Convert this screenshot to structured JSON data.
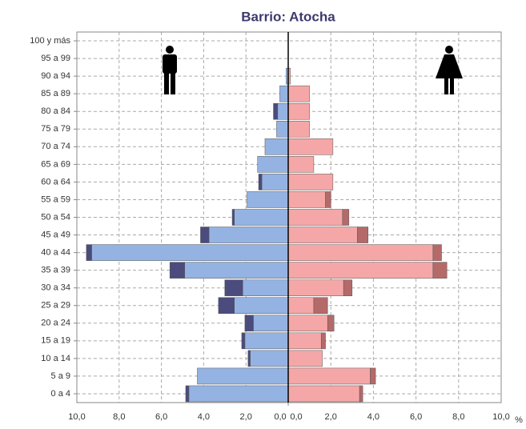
{
  "chart_data": {
    "type": "pyramid",
    "title": "Barrio: Atocha",
    "categories": [
      "100 y más",
      "95 a 99",
      "90 a 94",
      "85 a 89",
      "80 a 84",
      "75 a 79",
      "70 a 74",
      "65 a 69",
      "60 a 64",
      "55 a 59",
      "50 a 54",
      "45 a 49",
      "40 a 44",
      "35 a 39",
      "30 a 34",
      "25 a 29",
      "20 a 24",
      "15 a 19",
      "10 a 14",
      "5 a 9",
      "0 a 4"
    ],
    "series": [
      {
        "side": "left",
        "color": "#94b3e2",
        "values": [
          0,
          0,
          0.1,
          0.4,
          0.5,
          0.55,
          1.1,
          1.45,
          1.25,
          1.95,
          2.55,
          3.75,
          9.3,
          4.9,
          2.15,
          2.55,
          1.65,
          2.05,
          1.8,
          4.3,
          4.7
        ]
      },
      {
        "side": "left",
        "color": "#4b4b7d",
        "values": [
          0,
          0,
          0,
          0,
          0.2,
          0,
          0,
          0,
          0.15,
          0,
          0.1,
          0.4,
          0.25,
          0.7,
          0.85,
          0.75,
          0.4,
          0.15,
          0.1,
          0,
          0.15
        ]
      },
      {
        "side": "right",
        "color": "#f5a7a7",
        "values": [
          0,
          0,
          0.1,
          1.0,
          1.0,
          1.0,
          2.1,
          1.2,
          2.1,
          1.75,
          2.55,
          3.25,
          6.8,
          6.8,
          2.6,
          1.2,
          1.85,
          1.55,
          1.6,
          3.85,
          3.35
        ]
      },
      {
        "side": "right",
        "color": "#b56a6a",
        "values": [
          0,
          0,
          0,
          0,
          0,
          0,
          0,
          0,
          0,
          0.25,
          0.3,
          0.5,
          0.4,
          0.65,
          0.4,
          0.65,
          0.3,
          0.2,
          0,
          0.25,
          0.15
        ]
      }
    ],
    "xlim": [
      0,
      10
    ],
    "xticks_left": [
      {
        "value": 10,
        "label": "10,0"
      },
      {
        "value": 8,
        "label": "8,0"
      },
      {
        "value": 6,
        "label": "6,0"
      },
      {
        "value": 4,
        "label": "4,0"
      },
      {
        "value": 2,
        "label": "2,0"
      },
      {
        "value": 0,
        "label": "0,0"
      }
    ],
    "xticks_right": [
      {
        "value": 0,
        "label": "0,0"
      },
      {
        "value": 2,
        "label": "2,0"
      },
      {
        "value": 4,
        "label": "4,0"
      },
      {
        "value": 6,
        "label": "6,0"
      },
      {
        "value": 8,
        "label": "8,0"
      },
      {
        "value": 10,
        "label": "10,0"
      }
    ],
    "x_unit": "%",
    "grid": true
  }
}
